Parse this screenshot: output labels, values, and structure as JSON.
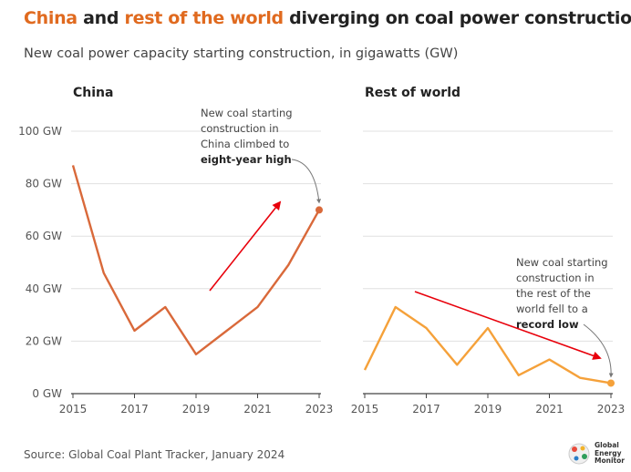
{
  "header": {
    "title_part1": "China",
    "title_part2": " and ",
    "title_part3": "rest of the world",
    "title_part4": " diverging on coal power construction",
    "subtitle": "New coal power capacity starting construction, in gigawatts (GW)"
  },
  "footer": {
    "source": "Source: Global Coal Plant Tracker, January 2024",
    "logo_line1": "Global",
    "logo_line2": "Energy",
    "logo_line3": "Monitor"
  },
  "colors": {
    "china_line": "#d9693a",
    "row_line": "#f5a13a",
    "arrow": "#e8000b",
    "title_accent": "#e06a1f",
    "grid": "#e0e0e0"
  },
  "chart_data": [
    {
      "type": "line",
      "title": "China",
      "x": [
        2015,
        2016,
        2017,
        2018,
        2019,
        2020,
        2021,
        2022,
        2023
      ],
      "series": [
        {
          "values": [
            87,
            46,
            24,
            33,
            15,
            24,
            33,
            49,
            70
          ]
        }
      ],
      "ylim": [
        0,
        100
      ],
      "yticks": [
        "0 GW",
        "20 GW",
        "40 GW",
        "60 GW",
        "80 GW",
        "100 GW"
      ],
      "xticks": [
        "2015",
        "2017",
        "2019",
        "2021",
        "2023"
      ],
      "grid": true,
      "annotation": {
        "lines": [
          "New coal starting",
          "construction in",
          "China climbed to"
        ],
        "bold": "eight-year high"
      }
    },
    {
      "type": "line",
      "title": "Rest of world",
      "x": [
        2015,
        2016,
        2017,
        2018,
        2019,
        2020,
        2021,
        2022,
        2023
      ],
      "series": [
        {
          "values": [
            9,
            33,
            25,
            11,
            25,
            7,
            13,
            6,
            4
          ]
        }
      ],
      "ylim": [
        0,
        100
      ],
      "xticks": [
        "2015",
        "2017",
        "2019",
        "2021",
        "2023"
      ],
      "grid": true,
      "annotation": {
        "lines": [
          "New coal starting",
          "construction in",
          "the rest of the",
          "world fell to a"
        ],
        "bold": "record low"
      }
    }
  ]
}
